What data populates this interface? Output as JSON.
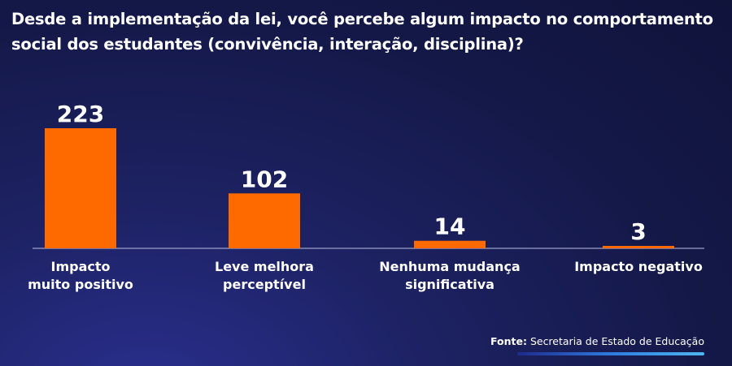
{
  "title": "Desde a implementação da lei, você percebe algum impacto no comportamento social dos estudantes (convivência, interação, disciplina)?",
  "source": {
    "label": "Fonte:",
    "text": "Secretaria de Estado de Educação"
  },
  "colors": {
    "bar": "#ff6a00",
    "baseline": "#9aa0c8",
    "text": "#ffffff",
    "background": "#141847"
  },
  "chart_data": {
    "type": "bar",
    "categories": [
      [
        "Impacto",
        "muito positivo"
      ],
      [
        "Leve melhora",
        "perceptível"
      ],
      [
        "Nenhuma mudança",
        "significativa"
      ],
      [
        "Impacto negativo"
      ]
    ],
    "values": [
      223,
      102,
      14,
      3
    ],
    "xlabel": "",
    "ylabel": "",
    "ylim": [
      0,
      223
    ],
    "grid": false,
    "legend": "none"
  }
}
